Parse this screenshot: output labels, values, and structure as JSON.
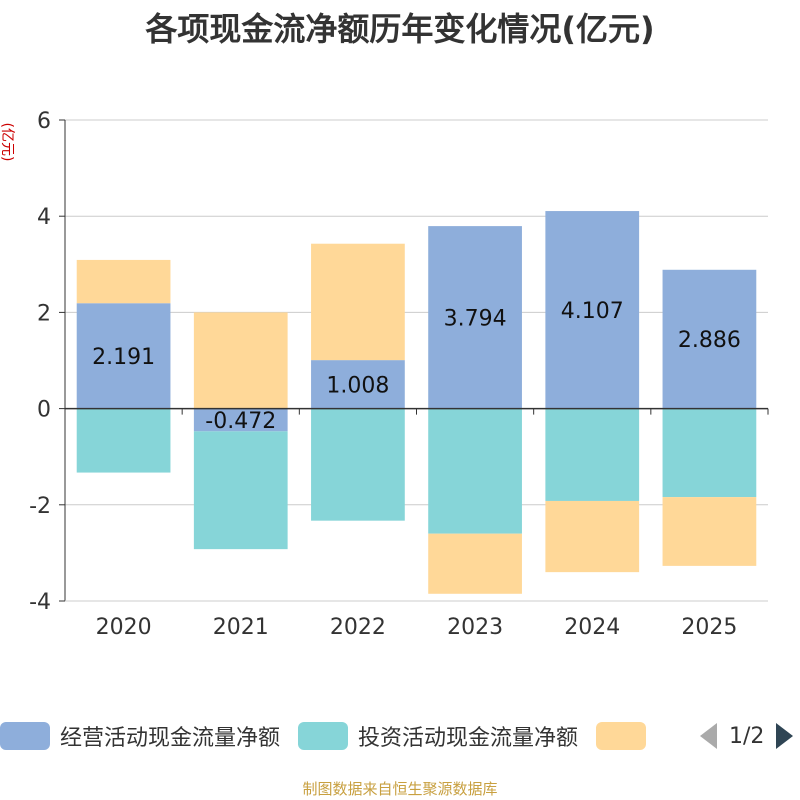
{
  "title": "各项现金流净额历年变化情况(亿元)",
  "unit": "(亿元)",
  "source": "制图数据来自恒生聚源数据库",
  "pager": "1/2",
  "legend": [
    {
      "label": "经营活动现金流量净额",
      "color": "#8eaedb"
    },
    {
      "label": "投资活动现金流量净额",
      "color": "#86d5d8"
    },
    {
      "label": "",
      "color": "#ffd898"
    }
  ],
  "chart_data": {
    "type": "bar",
    "stacked": true,
    "categories": [
      "2020",
      "2021",
      "2022",
      "2023",
      "2024",
      "2025"
    ],
    "ylim": [
      -4,
      6
    ],
    "yticks": [
      -4,
      -2,
      0,
      2,
      4,
      6
    ],
    "grid": true,
    "legend_position": "bottom",
    "series": [
      {
        "name": "经营活动现金流量净额",
        "color": "#8eaedb",
        "values": [
          2.191,
          -0.472,
          1.008,
          3.794,
          4.107,
          2.886
        ],
        "labels": [
          "2.191",
          "-0.472",
          "1.008",
          "3.794",
          "4.107",
          "2.886"
        ]
      },
      {
        "name": "投资活动现金流量净额",
        "color": "#86d5d8",
        "values": [
          -1.33,
          -2.45,
          -2.33,
          -2.6,
          -1.92,
          -1.84
        ]
      },
      {
        "color": "#ffd898",
        "values": [
          0.9,
          2.0,
          2.42,
          -1.25,
          -1.48,
          -1.43
        ]
      }
    ]
  }
}
